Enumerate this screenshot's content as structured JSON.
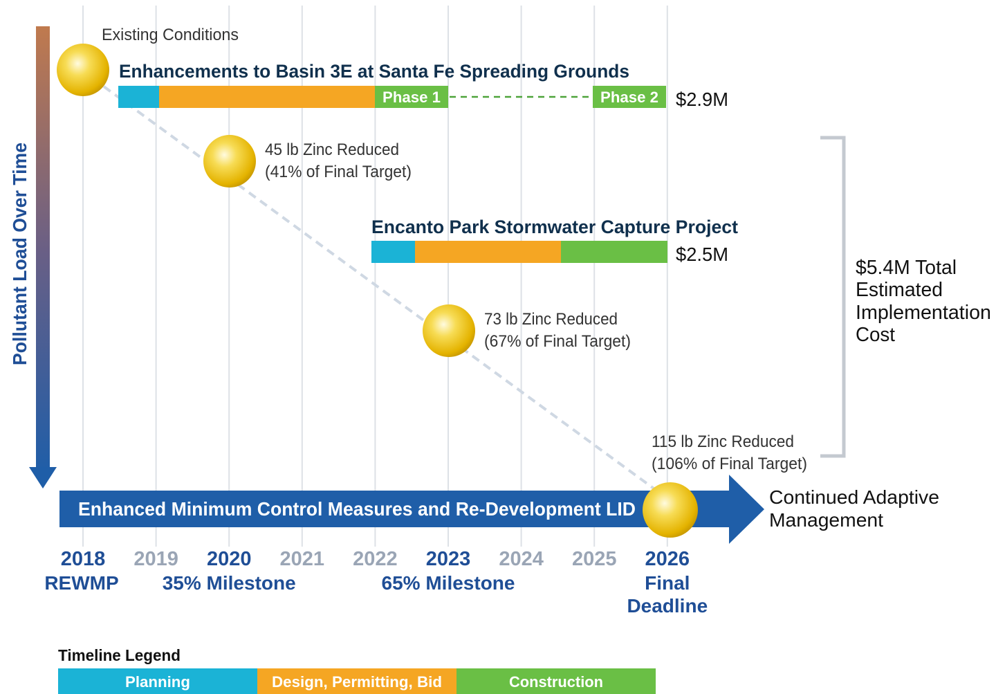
{
  "axis_label": "Pollutant Load Over Time",
  "existing_conditions": "Existing Conditions",
  "projects": [
    {
      "title": "Enhancements to Basin 3E at Santa Fe Spreading Grounds",
      "phases": [
        "Phase 1",
        "Phase 2"
      ],
      "cost": "$2.9M"
    },
    {
      "title": "Encanto Park Stormwater Capture Project",
      "cost": "$2.5M"
    }
  ],
  "milestones": [
    {
      "reduced": "45 lb Zinc Reduced",
      "target": "(41% of Final Target)"
    },
    {
      "reduced": "73 lb Zinc Reduced",
      "target": "(67% of Final Target)"
    },
    {
      "reduced": "115 lb Zinc Reduced",
      "target": "(106% of Final Target)"
    }
  ],
  "total_cost": [
    "$5.4M Total",
    "Estimated",
    "Implementation",
    "Cost"
  ],
  "baseline": "Enhanced Minimum Control Measures and Re-Development LID",
  "continued": [
    "Continued Adaptive",
    "Management"
  ],
  "years": [
    {
      "year": "2018",
      "label": [
        "REWMP"
      ]
    },
    {
      "year": "2019"
    },
    {
      "year": "2020",
      "label": [
        "35% Milestone"
      ]
    },
    {
      "year": "2021"
    },
    {
      "year": "2022"
    },
    {
      "year": "2023",
      "label": [
        "65% Milestone"
      ]
    },
    {
      "year": "2024"
    },
    {
      "year": "2025"
    },
    {
      "year": "2026",
      "label": [
        "Final",
        "Deadline"
      ]
    }
  ],
  "legend": {
    "title": "Timeline Legend",
    "items": [
      "Planning",
      "Design, Permitting, Bid",
      "Construction"
    ]
  }
}
